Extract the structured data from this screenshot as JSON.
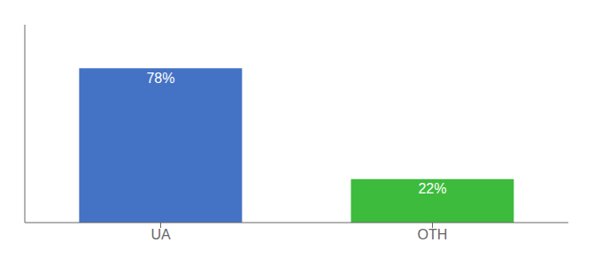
{
  "chart_data": {
    "type": "bar",
    "categories": [
      "UA",
      "OTH"
    ],
    "values": [
      78,
      22
    ],
    "value_labels": [
      "78%",
      "22%"
    ],
    "colors": [
      "#4472c4",
      "#3dbb3d"
    ],
    "ylim": [
      0,
      100
    ],
    "data_labels": true,
    "tick_labels": "x"
  }
}
